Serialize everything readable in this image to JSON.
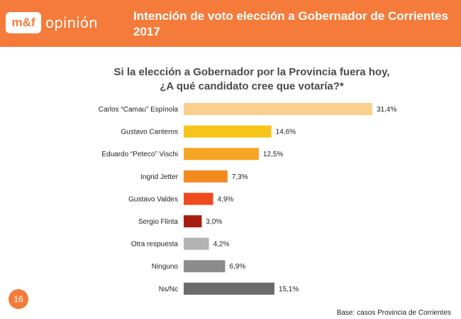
{
  "header": {
    "logo_mark": "m&f",
    "logo_word": "opinión",
    "title_line1": "Intención de voto elección a Gobernador de Corrientes",
    "title_line2": "2017"
  },
  "question": {
    "line1": "Si la elección a Gobernador por la Provincia fuera hoy,",
    "line2": "¿A qué candidato cree que votaría?*"
  },
  "page_number": "16",
  "footnote": "Base: casos Provincia de Corrientes",
  "colors": {
    "brand": "#f47b3a"
  },
  "chart_data": {
    "type": "bar",
    "orientation": "horizontal",
    "categories": [
      "Carlos “Camau” Espínola",
      "Gustavo Canteros",
      "Eduardo “Peteco” Vischi",
      "Ingrid Jetter",
      "Gustavo Valdes",
      "Sergio Flinta",
      "Otra respuesta",
      "Ninguno",
      "Ns/Nc"
    ],
    "values": [
      31.4,
      14.6,
      12.5,
      7.3,
      4.9,
      3.0,
      4.2,
      6.9,
      15.1
    ],
    "value_labels": [
      "31,4%",
      "14,6%",
      "12,5%",
      "7,3%",
      "4,9%",
      "3,0%",
      "4,2%",
      "6,9%",
      "15,1%"
    ],
    "bar_colors": [
      "#f9d08c",
      "#f7c51a",
      "#f5a623",
      "#f28a1e",
      "#ee4a1c",
      "#a81d12",
      "#b3b3b3",
      "#8c8c8c",
      "#6b6b6b"
    ],
    "grid": false
  }
}
